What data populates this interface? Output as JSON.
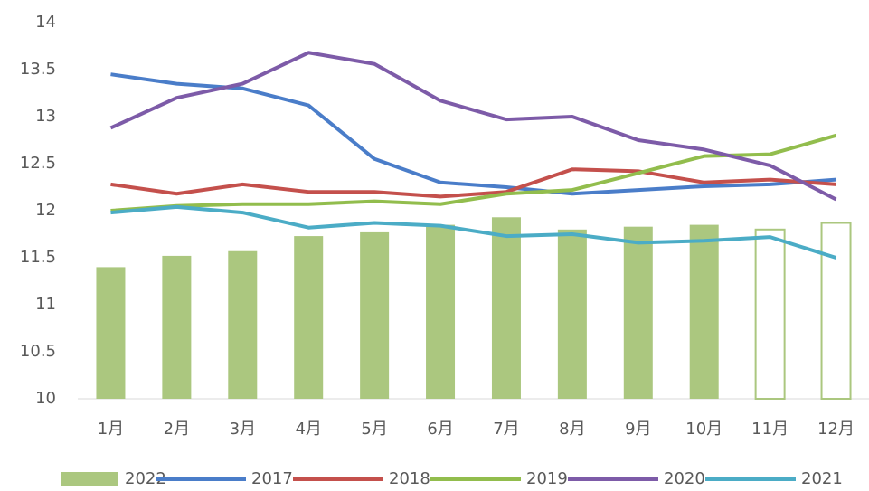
{
  "chart_data": {
    "type": "bar_line",
    "categories": [
      "1月",
      "2月",
      "3月",
      "4月",
      "5月",
      "6月",
      "7月",
      "8月",
      "9月",
      "10月",
      "11月",
      "12月"
    ],
    "bars": {
      "name": "2022",
      "color": "#abc77f",
      "values": [
        11.4,
        11.52,
        11.57,
        11.73,
        11.77,
        11.85,
        11.93,
        11.8,
        11.83,
        11.85,
        11.8,
        11.87
      ],
      "hollow": [
        false,
        false,
        false,
        false,
        false,
        false,
        false,
        false,
        false,
        false,
        true,
        true
      ]
    },
    "series": [
      {
        "name": "2017",
        "color": "#4a7dc9",
        "values": [
          13.45,
          13.35,
          13.3,
          13.12,
          12.55,
          12.3,
          12.25,
          12.18,
          12.22,
          12.26,
          12.28,
          12.33
        ]
      },
      {
        "name": "2018",
        "color": "#c4504c",
        "values": [
          12.28,
          12.18,
          12.28,
          12.2,
          12.2,
          12.15,
          12.2,
          12.44,
          12.42,
          12.3,
          12.33,
          12.28
        ]
      },
      {
        "name": "2019",
        "color": "#92bd4d",
        "values": [
          12.0,
          12.05,
          12.07,
          12.07,
          12.1,
          12.07,
          12.18,
          12.22,
          12.4,
          12.58,
          12.6,
          12.8
        ]
      },
      {
        "name": "2020",
        "color": "#7d5ba8",
        "values": [
          12.88,
          13.2,
          13.35,
          13.68,
          13.56,
          13.17,
          12.97,
          13.0,
          12.75,
          12.65,
          12.48,
          12.12
        ]
      },
      {
        "name": "2021",
        "color": "#4bacc6",
        "values": [
          11.98,
          12.04,
          11.98,
          11.82,
          11.87,
          11.84,
          11.73,
          11.75,
          11.66,
          11.68,
          11.72,
          11.5
        ]
      }
    ],
    "ylim": [
      10,
      14
    ],
    "yticks": [
      10,
      10.5,
      11,
      11.5,
      12,
      12.5,
      13,
      13.5,
      14
    ],
    "grid": false,
    "legend": "bottom"
  }
}
